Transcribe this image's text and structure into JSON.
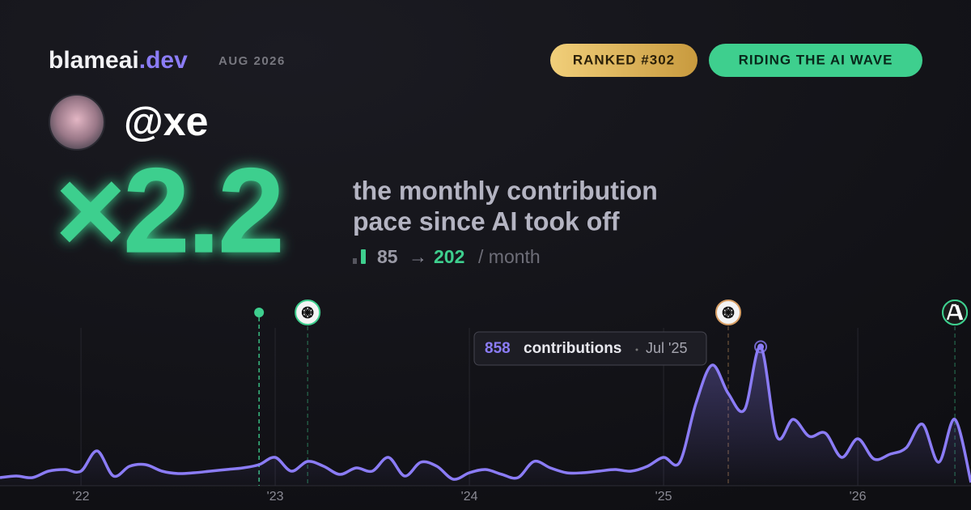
{
  "header": {
    "brand": "blameai",
    "brand_suffix": ".dev",
    "date": "AUG 2026",
    "badges": [
      "RANKED #302",
      "RIDING THE AI WAVE"
    ]
  },
  "profile": {
    "handle": "@xe"
  },
  "stat": {
    "value": "×2.2",
    "caption": [
      "the monthly contribution",
      "pace since AI took off"
    ],
    "from": "85",
    "arrow": "→",
    "to": "202",
    "unit": "/ month"
  },
  "chart_data": {
    "type": "line",
    "x": [
      2021.583,
      2021.667,
      2021.75,
      2021.833,
      2021.917,
      2022,
      2022.083,
      2022.167,
      2022.25,
      2022.333,
      2022.417,
      2022.5,
      2022.583,
      2022.667,
      2022.75,
      2022.833,
      2022.917,
      2023,
      2023.083,
      2023.167,
      2023.25,
      2023.333,
      2023.417,
      2023.5,
      2023.583,
      2023.667,
      2023.75,
      2023.833,
      2023.917,
      2024,
      2024.083,
      2024.167,
      2024.25,
      2024.333,
      2024.417,
      2024.5,
      2024.583,
      2024.667,
      2024.75,
      2024.833,
      2024.917,
      2025,
      2025.083,
      2025.167,
      2025.25,
      2025.333,
      2025.417,
      2025.5,
      2025.583,
      2025.667,
      2025.75,
      2025.833,
      2025.917,
      2026,
      2026.083,
      2026.167,
      2026.25,
      2026.333,
      2026.417,
      2026.5,
      2026.583
    ],
    "series": [
      {
        "name": "contributions",
        "color": "#8b7cf6",
        "values": [
          50,
          60,
          50,
          90,
          100,
          90,
          215,
          60,
          120,
          130,
          90,
          75,
          80,
          90,
          100,
          110,
          130,
          175,
          90,
          150,
          120,
          70,
          110,
          90,
          175,
          60,
          145,
          120,
          40,
          80,
          100,
          70,
          50,
          150,
          110,
          80,
          80,
          90,
          100,
          90,
          120,
          175,
          145,
          510,
          745,
          570,
          470,
          858,
          305,
          410,
          305,
          325,
          175,
          290,
          165,
          195,
          235,
          380,
          145,
          410,
          20
        ]
      }
    ],
    "xlim": [
      2021.583,
      2026.583
    ],
    "ylim": [
      0,
      1000
    ],
    "xticks": [
      {
        "value": 2022,
        "label": "'22"
      },
      {
        "value": 2023,
        "label": "'23"
      },
      {
        "value": 2024,
        "label": "'24"
      },
      {
        "value": 2025,
        "label": "'25"
      },
      {
        "value": 2026,
        "label": "'26"
      }
    ],
    "grid": true,
    "tooltip": {
      "value": "858",
      "label": "contributions",
      "date": "Jul '25",
      "x": 2025.5
    },
    "events": [
      {
        "x": 2022.917,
        "color": "#3ecf8e",
        "kind": "dot"
      },
      {
        "x": 2023.167,
        "color": "#3ecf8e",
        "kind": "openai"
      },
      {
        "x": 2025.333,
        "color": "#d9a066",
        "kind": "openai"
      },
      {
        "x": 2026.5,
        "color": "#3ecf8e",
        "kind": "anthropic"
      }
    ]
  }
}
